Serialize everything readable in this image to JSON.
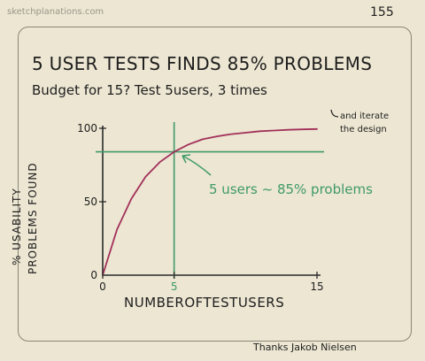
{
  "site": "sketchplanations.com",
  "page_number": "155",
  "headline": "5 USER TESTS FINDS 85% PROBLEMS",
  "subheadline": "Budget for 15? Test 5users, 3 times",
  "note_line1": "and iterate",
  "note_line2": "the design",
  "credit": "Thanks Jakob Nielsen",
  "colors": {
    "curve": "#a2305a",
    "guide": "#3f9a6a",
    "axis": "#2a2a2a",
    "ink": "#1e1e1e"
  },
  "chart_data": {
    "type": "line",
    "xlabel": "NUMBEROFTESTUSERS",
    "ylabel_line1": "% USABILITY",
    "ylabel_line2": "PROBLEMS FOUND",
    "x_ticks": [
      "0",
      "5",
      "15"
    ],
    "y_ticks": [
      "0",
      "50",
      "100"
    ],
    "xlim": [
      0,
      15
    ],
    "ylim": [
      0,
      100
    ],
    "series": [
      {
        "x": [
          0,
          1,
          2,
          3,
          4,
          5,
          6,
          7,
          8,
          9,
          10,
          11,
          12,
          13,
          14,
          15
        ],
        "y": [
          0,
          31,
          52,
          67,
          77,
          84,
          89,
          92.5,
          94.5,
          96,
          97,
          98,
          98.5,
          99,
          99.3,
          99.5
        ]
      }
    ],
    "reference_lines": {
      "x": 5,
      "y": 84
    },
    "annotation": "5 users ~ 85% problems"
  }
}
